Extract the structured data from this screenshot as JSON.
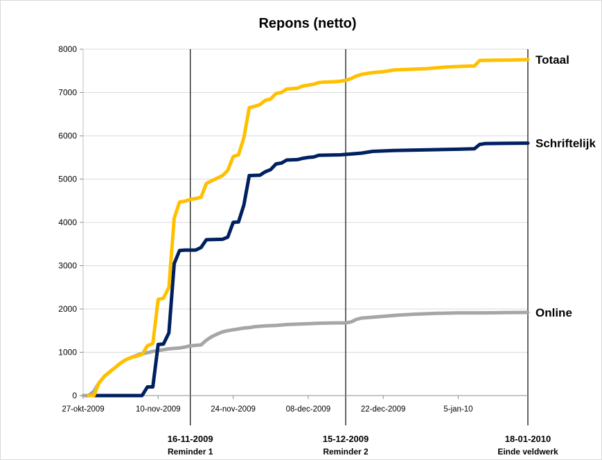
{
  "chart_data": {
    "type": "line",
    "title": "Repons (netto)",
    "xlabel": "",
    "ylabel": "",
    "ylim": [
      0,
      8000
    ],
    "yticks": [
      0,
      1000,
      2000,
      3000,
      4000,
      5000,
      6000,
      7000,
      8000
    ],
    "xlim": [
      "2009-10-27",
      "2010-01-18"
    ],
    "xticks": [
      {
        "date": "2009-10-27",
        "label": "27-okt-2009"
      },
      {
        "date": "2009-11-10",
        "label": "10-nov-2009"
      },
      {
        "date": "2009-11-24",
        "label": "24-nov-2009"
      },
      {
        "date": "2009-12-08",
        "label": "08-dec-2009"
      },
      {
        "date": "2009-12-22",
        "label": "22-dec-2009"
      },
      {
        "date": "2010-01-05",
        "label": "5-jan-10"
      }
    ],
    "grid": true,
    "series": [
      {
        "name": "Totaal",
        "color": "#ffc000",
        "points": [
          [
            "2009-10-28",
            0
          ],
          [
            "2009-10-29",
            0
          ],
          [
            "2009-10-30",
            300
          ],
          [
            "2009-10-31",
            450
          ],
          [
            "2009-11-01",
            550
          ],
          [
            "2009-11-02",
            650
          ],
          [
            "2009-11-03",
            750
          ],
          [
            "2009-11-04",
            830
          ],
          [
            "2009-11-05",
            880
          ],
          [
            "2009-11-06",
            910
          ],
          [
            "2009-11-07",
            950
          ],
          [
            "2009-11-08",
            1150
          ],
          [
            "2009-11-09",
            1200
          ],
          [
            "2009-11-10",
            2220
          ],
          [
            "2009-11-11",
            2250
          ],
          [
            "2009-11-12",
            2500
          ],
          [
            "2009-11-13",
            4100
          ],
          [
            "2009-11-14",
            4470
          ],
          [
            "2009-11-15",
            4490
          ],
          [
            "2009-11-16",
            4530
          ],
          [
            "2009-11-17",
            4550
          ],
          [
            "2009-11-18",
            4580
          ],
          [
            "2009-11-19",
            4900
          ],
          [
            "2009-11-20",
            4960
          ],
          [
            "2009-11-21",
            5020
          ],
          [
            "2009-11-22",
            5080
          ],
          [
            "2009-11-23",
            5200
          ],
          [
            "2009-11-24",
            5520
          ],
          [
            "2009-11-25",
            5560
          ],
          [
            "2009-11-26",
            5950
          ],
          [
            "2009-11-27",
            6650
          ],
          [
            "2009-11-28",
            6680
          ],
          [
            "2009-11-29",
            6720
          ],
          [
            "2009-11-30",
            6820
          ],
          [
            "2009-12-01",
            6850
          ],
          [
            "2009-12-02",
            6980
          ],
          [
            "2009-12-03",
            7000
          ],
          [
            "2009-12-04",
            7080
          ],
          [
            "2009-12-05",
            7090
          ],
          [
            "2009-12-06",
            7100
          ],
          [
            "2009-12-07",
            7150
          ],
          [
            "2009-12-08",
            7170
          ],
          [
            "2009-12-09",
            7190
          ],
          [
            "2009-12-10",
            7230
          ],
          [
            "2009-12-11",
            7240
          ],
          [
            "2009-12-12",
            7245
          ],
          [
            "2009-12-13",
            7250
          ],
          [
            "2009-12-14",
            7260
          ],
          [
            "2009-12-15",
            7280
          ],
          [
            "2009-12-16",
            7320
          ],
          [
            "2009-12-17",
            7380
          ],
          [
            "2009-12-18",
            7420
          ],
          [
            "2009-12-19",
            7440
          ],
          [
            "2009-12-20",
            7460
          ],
          [
            "2009-12-21",
            7470
          ],
          [
            "2009-12-22",
            7480
          ],
          [
            "2009-12-23",
            7500
          ],
          [
            "2009-12-24",
            7520
          ],
          [
            "2009-12-26",
            7530
          ],
          [
            "2009-12-28",
            7540
          ],
          [
            "2009-12-30",
            7550
          ],
          [
            "2010-01-01",
            7570
          ],
          [
            "2010-01-03",
            7590
          ],
          [
            "2010-01-05",
            7600
          ],
          [
            "2010-01-07",
            7610
          ],
          [
            "2010-01-08",
            7610
          ],
          [
            "2010-01-09",
            7740
          ],
          [
            "2010-01-12",
            7745
          ],
          [
            "2010-01-15",
            7750
          ],
          [
            "2010-01-18",
            7760
          ]
        ]
      },
      {
        "name": "Schriftelijk",
        "color": "#002060",
        "points": [
          [
            "2009-10-28",
            0
          ],
          [
            "2009-11-07",
            0
          ],
          [
            "2009-11-08",
            200
          ],
          [
            "2009-11-09",
            200
          ],
          [
            "2009-11-10",
            1180
          ],
          [
            "2009-11-11",
            1190
          ],
          [
            "2009-11-12",
            1450
          ],
          [
            "2009-11-13",
            3050
          ],
          [
            "2009-11-14",
            3350
          ],
          [
            "2009-11-15",
            3360
          ],
          [
            "2009-11-17",
            3360
          ],
          [
            "2009-11-18",
            3420
          ],
          [
            "2009-11-19",
            3600
          ],
          [
            "2009-11-22",
            3610
          ],
          [
            "2009-11-23",
            3660
          ],
          [
            "2009-11-24",
            4000
          ],
          [
            "2009-11-25",
            4010
          ],
          [
            "2009-11-26",
            4400
          ],
          [
            "2009-11-27",
            5080
          ],
          [
            "2009-11-29",
            5090
          ],
          [
            "2009-11-30",
            5170
          ],
          [
            "2009-12-01",
            5220
          ],
          [
            "2009-12-02",
            5350
          ],
          [
            "2009-12-03",
            5370
          ],
          [
            "2009-12-04",
            5440
          ],
          [
            "2009-12-06",
            5450
          ],
          [
            "2009-12-07",
            5480
          ],
          [
            "2009-12-08",
            5500
          ],
          [
            "2009-12-09",
            5510
          ],
          [
            "2009-12-10",
            5550
          ],
          [
            "2009-12-14",
            5560
          ],
          [
            "2009-12-16",
            5580
          ],
          [
            "2009-12-18",
            5600
          ],
          [
            "2009-12-20",
            5640
          ],
          [
            "2009-12-22",
            5650
          ],
          [
            "2009-12-24",
            5660
          ],
          [
            "2009-12-28",
            5670
          ],
          [
            "2010-01-01",
            5680
          ],
          [
            "2010-01-05",
            5690
          ],
          [
            "2010-01-08",
            5700
          ],
          [
            "2010-01-09",
            5800
          ],
          [
            "2010-01-10",
            5820
          ],
          [
            "2010-01-14",
            5825
          ],
          [
            "2010-01-18",
            5830
          ]
        ]
      },
      {
        "name": "Online",
        "color": "#a6a6a6",
        "points": [
          [
            "2009-10-27",
            0
          ],
          [
            "2009-10-28",
            0
          ],
          [
            "2009-10-29",
            100
          ],
          [
            "2009-10-30",
            300
          ],
          [
            "2009-10-31",
            450
          ],
          [
            "2009-11-01",
            550
          ],
          [
            "2009-11-02",
            650
          ],
          [
            "2009-11-03",
            750
          ],
          [
            "2009-11-04",
            830
          ],
          [
            "2009-11-05",
            880
          ],
          [
            "2009-11-06",
            930
          ],
          [
            "2009-11-07",
            970
          ],
          [
            "2009-11-08",
            990
          ],
          [
            "2009-11-09",
            1020
          ],
          [
            "2009-11-10",
            1040
          ],
          [
            "2009-11-11",
            1060
          ],
          [
            "2009-11-12",
            1080
          ],
          [
            "2009-11-13",
            1090
          ],
          [
            "2009-11-14",
            1100
          ],
          [
            "2009-11-15",
            1120
          ],
          [
            "2009-11-16",
            1150
          ],
          [
            "2009-11-17",
            1160
          ],
          [
            "2009-11-18",
            1170
          ],
          [
            "2009-11-19",
            1280
          ],
          [
            "2009-11-20",
            1360
          ],
          [
            "2009-11-21",
            1420
          ],
          [
            "2009-11-22",
            1470
          ],
          [
            "2009-11-23",
            1500
          ],
          [
            "2009-11-24",
            1520
          ],
          [
            "2009-11-25",
            1540
          ],
          [
            "2009-11-26",
            1560
          ],
          [
            "2009-11-27",
            1570
          ],
          [
            "2009-11-28",
            1590
          ],
          [
            "2009-11-29",
            1600
          ],
          [
            "2009-11-30",
            1610
          ],
          [
            "2009-12-02",
            1620
          ],
          [
            "2009-12-04",
            1640
          ],
          [
            "2009-12-06",
            1650
          ],
          [
            "2009-12-08",
            1660
          ],
          [
            "2009-12-10",
            1670
          ],
          [
            "2009-12-12",
            1675
          ],
          [
            "2009-12-15",
            1680
          ],
          [
            "2009-12-16",
            1700
          ],
          [
            "2009-12-17",
            1760
          ],
          [
            "2009-12-18",
            1790
          ],
          [
            "2009-12-20",
            1810
          ],
          [
            "2009-12-22",
            1830
          ],
          [
            "2009-12-25",
            1860
          ],
          [
            "2009-12-28",
            1880
          ],
          [
            "2010-01-01",
            1900
          ],
          [
            "2010-01-05",
            1910
          ],
          [
            "2010-01-10",
            1910
          ],
          [
            "2010-01-14",
            1915
          ],
          [
            "2010-01-18",
            1920
          ]
        ]
      }
    ],
    "markers": [
      {
        "date": "2009-11-16",
        "label_date": "16-11-2009",
        "label_text": "Reminder 1"
      },
      {
        "date": "2009-12-15",
        "label_date": "15-12-2009",
        "label_text": "Reminder 2"
      },
      {
        "date": "2010-01-18",
        "label_date": "18-01-2010",
        "label_text": "Einde veldwerk"
      }
    ]
  }
}
